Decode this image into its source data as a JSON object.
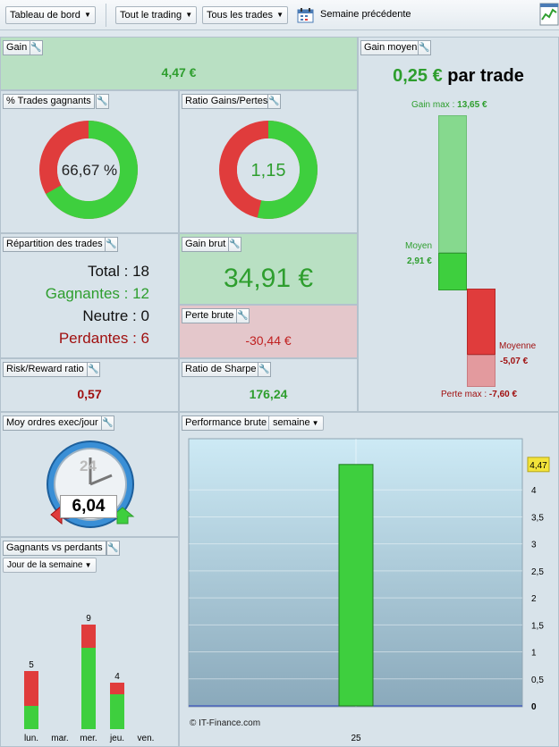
{
  "toolbar": {
    "dashboard": "Tableau de bord",
    "trading": "Tout le trading",
    "trades": "Tous les trades",
    "period": "Semaine précédente"
  },
  "gain": {
    "title": "Gain",
    "value": "4,47 €"
  },
  "win_pct": {
    "title": "% Trades gagnants",
    "value": "66,67 %",
    "fraction": 0.6667
  },
  "ratio": {
    "title": "Ratio Gains/Pertes",
    "value": "1,15",
    "fraction": 0.535
  },
  "avg_gain": {
    "title": "Gain moyen",
    "headline_value": "0,25 €",
    "headline_suffix": " par trade",
    "max_gain_label": "Gain max :",
    "max_gain": "13,65 €",
    "avg_label": "Moyen",
    "avg_gain": "2,91 €",
    "avg_loss_label": "Moyenne",
    "avg_loss": "-5,07 €",
    "max_loss_label": "Perte max :",
    "max_loss": "-7,60 €"
  },
  "repartition": {
    "title": "Répartition des trades",
    "total_label": "Total :",
    "total": "18",
    "winners_label": "Gagnantes :",
    "winners": "12",
    "neutral_label": "Neutre :",
    "neutral": "0",
    "losers_label": "Perdantes :",
    "losers": "6"
  },
  "gross_gain": {
    "title": "Gain brut",
    "value": "34,91 €"
  },
  "gross_loss": {
    "title": "Perte brute",
    "value": "-30,44 €"
  },
  "risk_reward": {
    "title": "Risk/Reward ratio",
    "value": "0,57"
  },
  "sharpe": {
    "title": "Ratio de Sharpe",
    "value": "176,24"
  },
  "orders": {
    "title": "Moy ordres exec/jour",
    "clock_label": "24",
    "value": "6,04"
  },
  "win_vs_loss": {
    "title": "Gagnants vs perdants",
    "selector": "Jour de la semaine",
    "days": [
      "lun.",
      "mar.",
      "mer.",
      "jeu.",
      "ven."
    ],
    "totals": [
      5,
      0,
      9,
      4,
      0
    ],
    "winners": [
      2,
      0,
      7,
      3,
      0
    ],
    "losers": [
      3,
      0,
      2,
      1,
      0
    ]
  },
  "performance": {
    "title": "Performance brute",
    "selector": "semaine",
    "watermark": "© IT-Finance.com"
  },
  "colors": {
    "green": "#3ecf3e",
    "red": "#e03c3c",
    "dark_green": "#2e9e2e",
    "dark_red": "#a01010"
  },
  "chart_data": {
    "type": "bar",
    "categories": [
      "25"
    ],
    "values": [
      4.47
    ],
    "ylim": [
      0,
      4.5
    ],
    "yticks": [
      "0",
      "0,5",
      "1",
      "1,5",
      "2",
      "2,5",
      "3",
      "3,5",
      "4"
    ],
    "value_label": "4,47",
    "grid": true
  }
}
